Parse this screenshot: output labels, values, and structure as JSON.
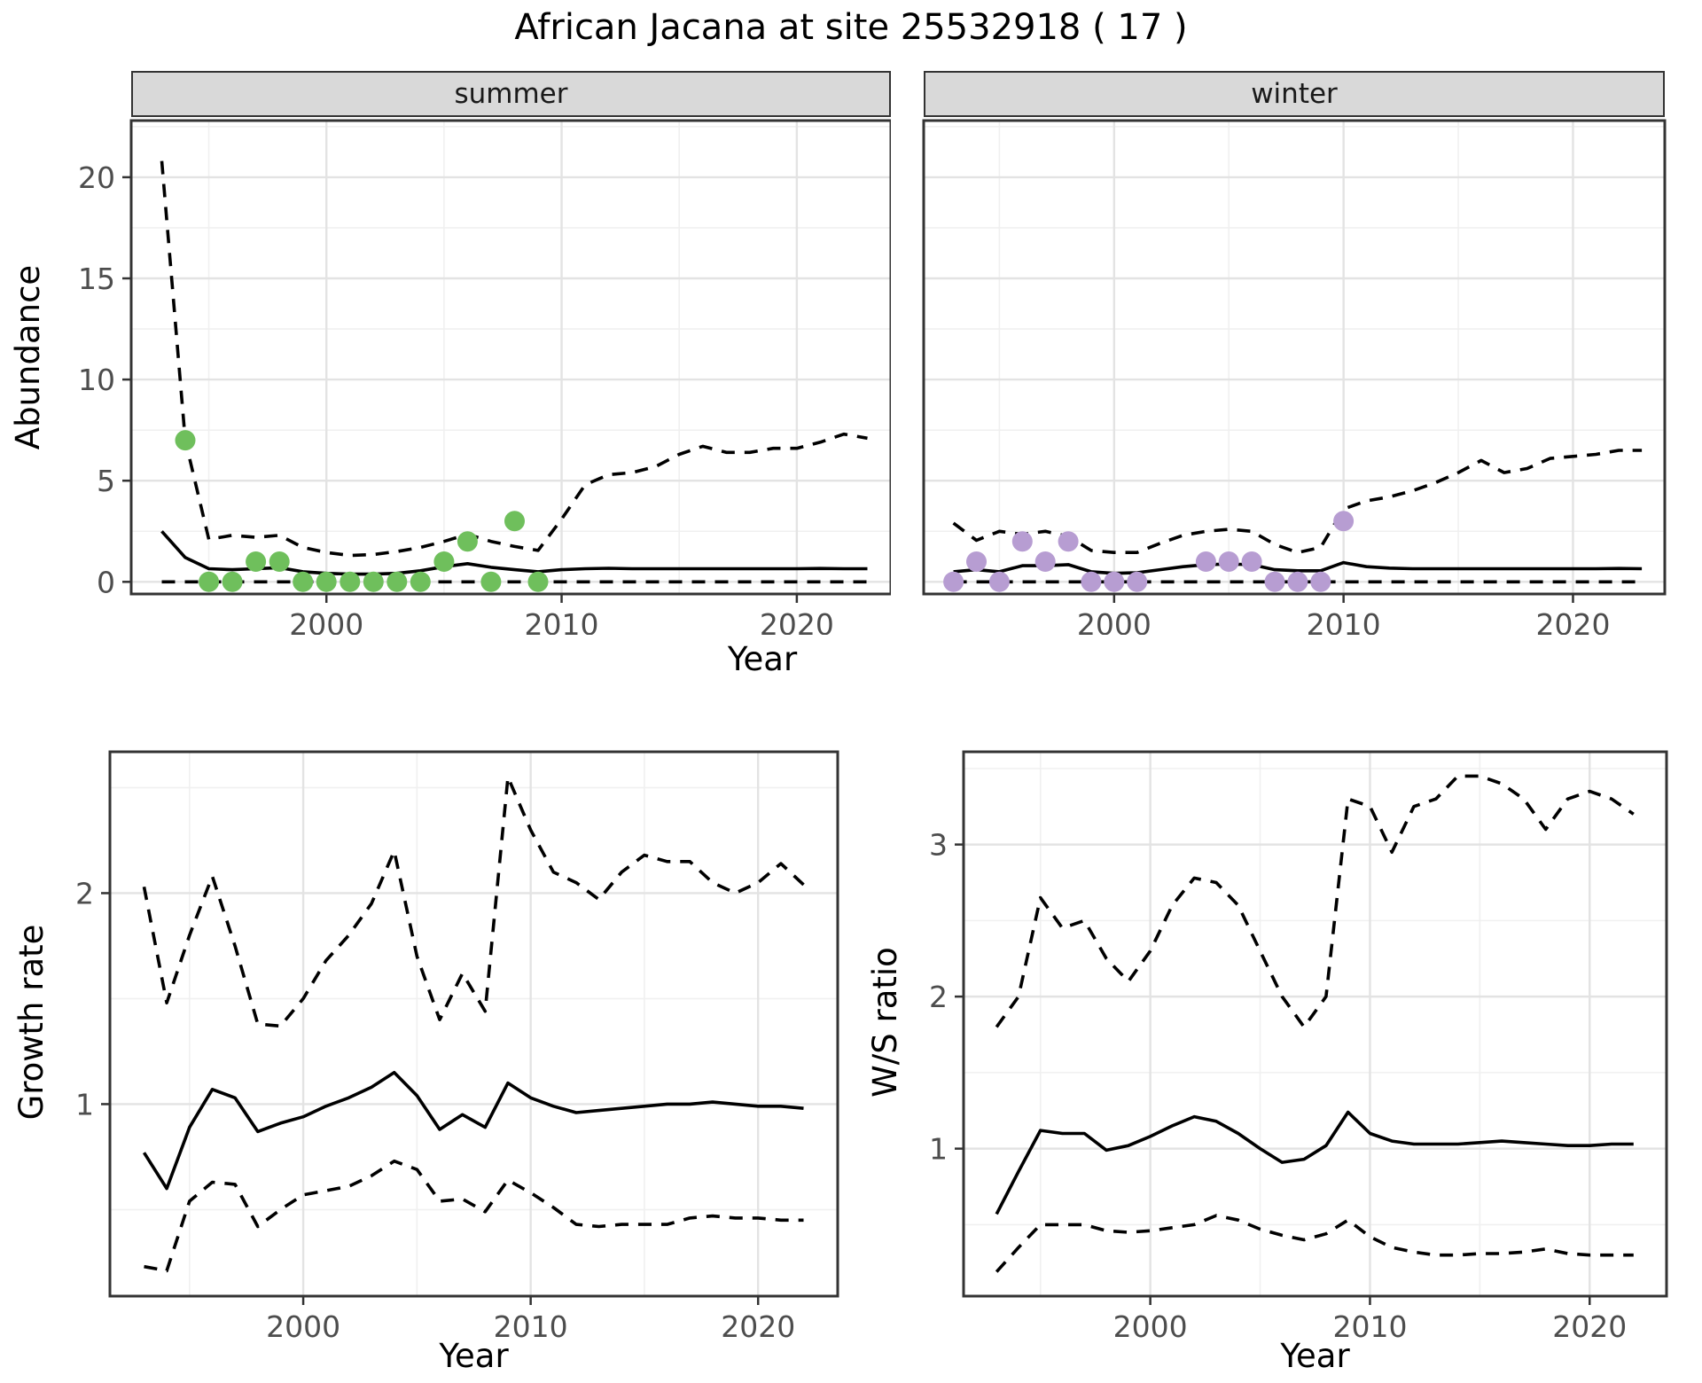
{
  "title": "African Jacana at site 25532918 ( 17 )",
  "style": {
    "summer_point_color": "#6fbf5c",
    "winter_point_color": "#b79dd2",
    "line_color": "#000000",
    "strip_bg": "#d9d9d9",
    "panel_border": "#333333",
    "grid_major": "#e3e3e3",
    "grid_minor": "#f0f0f0",
    "tick_text": "#4d4d4d"
  },
  "chart_data": [
    {
      "id": "abundance-summer",
      "type": "line+scatter",
      "facet_label": "summer",
      "ylabel": "Abundance",
      "xlabel": "Year",
      "xlim": [
        1991.7,
        2024.0
      ],
      "ylim": [
        -0.6,
        22.8
      ],
      "xticks": [
        2000,
        2010,
        2020
      ],
      "xticks_minor": [
        1995,
        2005,
        2015
      ],
      "yticks": [
        0,
        5,
        10,
        15,
        20
      ],
      "yticks_minor": [
        2.5,
        7.5,
        12.5,
        17.5,
        22.5
      ],
      "grid": true,
      "legend": "none",
      "point_color": "#6fbf5c",
      "points": {
        "x": [
          1994,
          1995,
          1996,
          1997,
          1998,
          1999,
          2000,
          2001,
          2002,
          2003,
          2004,
          2005,
          2006,
          2007,
          2008,
          2009
        ],
        "y": [
          7,
          0,
          0,
          1,
          1,
          0,
          0,
          0,
          0,
          0,
          0,
          1,
          2,
          0,
          3,
          0
        ]
      },
      "series": [
        {
          "name": "median",
          "linetype": "solid",
          "x": [
            1993,
            1994,
            1995,
            1996,
            1997,
            1998,
            1999,
            2000,
            2001,
            2002,
            2003,
            2004,
            2005,
            2006,
            2007,
            2008,
            2009,
            2010,
            2011,
            2012,
            2013,
            2014,
            2015,
            2016,
            2017,
            2018,
            2019,
            2020,
            2021,
            2022,
            2023
          ],
          "y": [
            2.5,
            1.2,
            0.65,
            0.6,
            0.65,
            0.7,
            0.5,
            0.42,
            0.38,
            0.38,
            0.42,
            0.55,
            0.75,
            0.9,
            0.72,
            0.6,
            0.5,
            0.6,
            0.65,
            0.67,
            0.65,
            0.65,
            0.65,
            0.65,
            0.65,
            0.65,
            0.65,
            0.65,
            0.66,
            0.65,
            0.65
          ]
        },
        {
          "name": "upper-ci",
          "linetype": "dashed",
          "x": [
            1993,
            1994,
            1995,
            1996,
            1997,
            1998,
            1999,
            2000,
            2001,
            2002,
            2003,
            2004,
            2005,
            2006,
            2007,
            2008,
            2009,
            2010,
            2011,
            2012,
            2013,
            2014,
            2015,
            2016,
            2017,
            2018,
            2019,
            2020,
            2021,
            2022,
            2023
          ],
          "y": [
            20.8,
            7.0,
            2.1,
            2.3,
            2.2,
            2.3,
            1.7,
            1.45,
            1.3,
            1.35,
            1.5,
            1.7,
            2.0,
            2.35,
            2.0,
            1.75,
            1.55,
            3.1,
            4.8,
            5.3,
            5.4,
            5.7,
            6.3,
            6.7,
            6.4,
            6.4,
            6.6,
            6.6,
            6.9,
            7.3,
            7.1
          ]
        },
        {
          "name": "lower-ci",
          "linetype": "dashed",
          "x": [
            1993,
            1994,
            1995,
            1996,
            1997,
            1998,
            1999,
            2000,
            2001,
            2002,
            2003,
            2004,
            2005,
            2006,
            2007,
            2008,
            2009,
            2010,
            2011,
            2012,
            2013,
            2014,
            2015,
            2016,
            2017,
            2018,
            2019,
            2020,
            2021,
            2022,
            2023
          ],
          "y": [
            0,
            0,
            0,
            0,
            0,
            0,
            0,
            0,
            0,
            0,
            0,
            0,
            0,
            0,
            0,
            0,
            0,
            0,
            0,
            0,
            0,
            0,
            0,
            0,
            0,
            0,
            0,
            0,
            0,
            0,
            0
          ]
        }
      ]
    },
    {
      "id": "abundance-winter",
      "type": "line+scatter",
      "facet_label": "winter",
      "ylabel": "Abundance",
      "xlabel": "Year",
      "xlim": [
        1991.7,
        2024.0
      ],
      "ylim": [
        -0.6,
        22.8
      ],
      "xticks": [
        2000,
        2010,
        2020
      ],
      "xticks_minor": [
        1995,
        2005,
        2015
      ],
      "yticks": [
        0,
        5,
        10,
        15,
        20
      ],
      "yticks_minor": [
        2.5,
        7.5,
        12.5,
        17.5,
        22.5
      ],
      "grid": true,
      "legend": "none",
      "point_color": "#b79dd2",
      "points": {
        "x": [
          1993,
          1994,
          1995,
          1996,
          1997,
          1998,
          1999,
          2000,
          2001,
          2004,
          2005,
          2006,
          2007,
          2008,
          2009,
          2010
        ],
        "y": [
          0,
          1,
          0,
          2,
          1,
          2,
          0,
          0,
          0,
          1,
          1,
          1,
          0,
          0,
          0,
          3
        ]
      },
      "series": [
        {
          "name": "median",
          "linetype": "solid",
          "x": [
            1993,
            1994,
            1995,
            1996,
            1997,
            1998,
            1999,
            2000,
            2001,
            2002,
            2003,
            2004,
            2005,
            2006,
            2007,
            2008,
            2009,
            2010,
            2011,
            2012,
            2013,
            2014,
            2015,
            2016,
            2017,
            2018,
            2019,
            2020,
            2021,
            2022,
            2023
          ],
          "y": [
            0.5,
            0.6,
            0.5,
            0.8,
            0.8,
            0.85,
            0.5,
            0.42,
            0.45,
            0.6,
            0.75,
            0.85,
            0.88,
            0.85,
            0.6,
            0.55,
            0.55,
            0.95,
            0.75,
            0.68,
            0.65,
            0.65,
            0.65,
            0.65,
            0.65,
            0.65,
            0.65,
            0.65,
            0.65,
            0.66,
            0.65
          ]
        },
        {
          "name": "upper-ci",
          "linetype": "dashed",
          "x": [
            1993,
            1994,
            1995,
            1996,
            1997,
            1998,
            1999,
            2000,
            2001,
            2002,
            2003,
            2004,
            2005,
            2006,
            2007,
            2008,
            2009,
            2010,
            2011,
            2012,
            2013,
            2014,
            2015,
            2016,
            2017,
            2018,
            2019,
            2020,
            2021,
            2022,
            2023
          ],
          "y": [
            2.9,
            2.05,
            2.5,
            2.35,
            2.5,
            2.25,
            1.55,
            1.45,
            1.45,
            1.9,
            2.3,
            2.5,
            2.6,
            2.5,
            1.85,
            1.45,
            1.7,
            3.6,
            4.0,
            4.2,
            4.5,
            4.9,
            5.4,
            6.0,
            5.4,
            5.6,
            6.1,
            6.2,
            6.3,
            6.5,
            6.5
          ]
        },
        {
          "name": "lower-ci",
          "linetype": "dashed",
          "x": [
            1993,
            1994,
            1995,
            1996,
            1997,
            1998,
            1999,
            2000,
            2001,
            2002,
            2003,
            2004,
            2005,
            2006,
            2007,
            2008,
            2009,
            2010,
            2011,
            2012,
            2013,
            2014,
            2015,
            2016,
            2017,
            2018,
            2019,
            2020,
            2021,
            2022,
            2023
          ],
          "y": [
            0,
            0,
            0,
            0,
            0,
            0,
            0,
            0,
            0,
            0,
            0,
            0,
            0,
            0,
            0,
            0,
            0,
            0,
            0,
            0,
            0,
            0,
            0,
            0,
            0,
            0,
            0,
            0,
            0,
            0,
            0
          ]
        }
      ]
    },
    {
      "id": "growth-rate",
      "type": "line",
      "facet_label": "",
      "ylabel": "Growth rate",
      "xlabel": "Year",
      "xlim": [
        1991.5,
        2023.5
      ],
      "ylim": [
        0.09,
        2.67
      ],
      "xticks": [
        2000,
        2010,
        2020
      ],
      "xticks_minor": [
        1995,
        2005,
        2015
      ],
      "yticks": [
        1,
        2
      ],
      "yticks_minor": [
        0.5,
        1.5,
        2.5
      ],
      "grid": true,
      "legend": "none",
      "series": [
        {
          "name": "median",
          "linetype": "solid",
          "x": [
            1993,
            1994,
            1995,
            1996,
            1997,
            1998,
            1999,
            2000,
            2001,
            2002,
            2003,
            2004,
            2005,
            2006,
            2007,
            2008,
            2009,
            2010,
            2011,
            2012,
            2013,
            2014,
            2015,
            2016,
            2017,
            2018,
            2019,
            2020,
            2021,
            2022
          ],
          "y": [
            0.77,
            0.6,
            0.89,
            1.07,
            1.03,
            0.87,
            0.91,
            0.94,
            0.99,
            1.03,
            1.08,
            1.15,
            1.04,
            0.88,
            0.95,
            0.89,
            1.1,
            1.03,
            0.99,
            0.96,
            0.97,
            0.98,
            0.99,
            1.0,
            1.0,
            1.01,
            1.0,
            0.99,
            0.99,
            0.98
          ]
        },
        {
          "name": "upper-ci",
          "linetype": "dashed",
          "x": [
            1993,
            1994,
            1995,
            1996,
            1997,
            1998,
            1999,
            2000,
            2001,
            2002,
            2003,
            2004,
            2005,
            2006,
            2007,
            2008,
            2009,
            2010,
            2011,
            2012,
            2013,
            2014,
            2015,
            2016,
            2017,
            2018,
            2019,
            2020,
            2021,
            2022
          ],
          "y": [
            2.03,
            1.48,
            1.8,
            2.08,
            1.75,
            1.38,
            1.37,
            1.5,
            1.68,
            1.8,
            1.95,
            2.2,
            1.7,
            1.4,
            1.62,
            1.44,
            2.55,
            2.3,
            2.1,
            2.05,
            1.97,
            2.1,
            2.18,
            2.15,
            2.15,
            2.05,
            2.0,
            2.05,
            2.14,
            2.04
          ]
        },
        {
          "name": "lower-ci",
          "linetype": "dashed",
          "x": [
            1993,
            1994,
            1995,
            1996,
            1997,
            1998,
            1999,
            2000,
            2001,
            2002,
            2003,
            2004,
            2005,
            2006,
            2007,
            2008,
            2009,
            2010,
            2011,
            2012,
            2013,
            2014,
            2015,
            2016,
            2017,
            2018,
            2019,
            2020,
            2021,
            2022
          ],
          "y": [
            0.23,
            0.21,
            0.54,
            0.63,
            0.62,
            0.42,
            0.5,
            0.57,
            0.59,
            0.61,
            0.66,
            0.73,
            0.69,
            0.54,
            0.55,
            0.49,
            0.64,
            0.58,
            0.51,
            0.43,
            0.42,
            0.43,
            0.43,
            0.43,
            0.46,
            0.47,
            0.46,
            0.46,
            0.45,
            0.45
          ]
        }
      ]
    },
    {
      "id": "ws-ratio",
      "type": "line",
      "facet_label": "",
      "ylabel": "W/S ratio",
      "xlabel": "Year",
      "xlim": [
        1991.5,
        2023.5
      ],
      "ylim": [
        0.03,
        3.61
      ],
      "xticks": [
        2000,
        2010,
        2020
      ],
      "xticks_minor": [
        1995,
        2005,
        2015
      ],
      "yticks": [
        1,
        2,
        3
      ],
      "yticks_minor": [
        0.5,
        1.5,
        2.5,
        3.5
      ],
      "grid": true,
      "legend": "none",
      "series": [
        {
          "name": "median",
          "linetype": "solid",
          "x": [
            1993,
            1994,
            1995,
            1996,
            1997,
            1998,
            1999,
            2000,
            2001,
            2002,
            2003,
            2004,
            2005,
            2006,
            2007,
            2008,
            2009,
            2010,
            2011,
            2012,
            2013,
            2014,
            2015,
            2016,
            2017,
            2018,
            2019,
            2020,
            2021,
            2022
          ],
          "y": [
            0.57,
            0.85,
            1.12,
            1.1,
            1.1,
            0.99,
            1.02,
            1.08,
            1.15,
            1.21,
            1.18,
            1.1,
            1.0,
            0.91,
            0.93,
            1.02,
            1.24,
            1.1,
            1.05,
            1.03,
            1.03,
            1.03,
            1.04,
            1.05,
            1.04,
            1.03,
            1.02,
            1.02,
            1.03,
            1.03
          ]
        },
        {
          "name": "upper-ci",
          "linetype": "dashed",
          "x": [
            1993,
            1994,
            1995,
            1996,
            1997,
            1998,
            1999,
            2000,
            2001,
            2002,
            2003,
            2004,
            2005,
            2006,
            2007,
            2008,
            2009,
            2010,
            2011,
            2012,
            2013,
            2014,
            2015,
            2016,
            2017,
            2018,
            2019,
            2020,
            2021,
            2022
          ],
          "y": [
            1.8,
            2.0,
            2.65,
            2.45,
            2.5,
            2.25,
            2.1,
            2.3,
            2.6,
            2.78,
            2.75,
            2.6,
            2.3,
            2.0,
            1.8,
            2.0,
            3.3,
            3.25,
            2.95,
            3.25,
            3.3,
            3.45,
            3.45,
            3.4,
            3.3,
            3.1,
            3.3,
            3.35,
            3.3,
            3.2
          ]
        },
        {
          "name": "lower-ci",
          "linetype": "dashed",
          "x": [
            1993,
            1994,
            1995,
            1996,
            1997,
            1998,
            1999,
            2000,
            2001,
            2002,
            2003,
            2004,
            2005,
            2006,
            2007,
            2008,
            2009,
            2010,
            2011,
            2012,
            2013,
            2014,
            2015,
            2016,
            2017,
            2018,
            2019,
            2020,
            2021,
            2022
          ],
          "y": [
            0.19,
            0.35,
            0.5,
            0.5,
            0.5,
            0.46,
            0.45,
            0.46,
            0.48,
            0.5,
            0.56,
            0.53,
            0.47,
            0.43,
            0.4,
            0.44,
            0.53,
            0.42,
            0.35,
            0.32,
            0.3,
            0.3,
            0.31,
            0.31,
            0.32,
            0.34,
            0.31,
            0.3,
            0.3,
            0.3
          ]
        }
      ]
    }
  ]
}
